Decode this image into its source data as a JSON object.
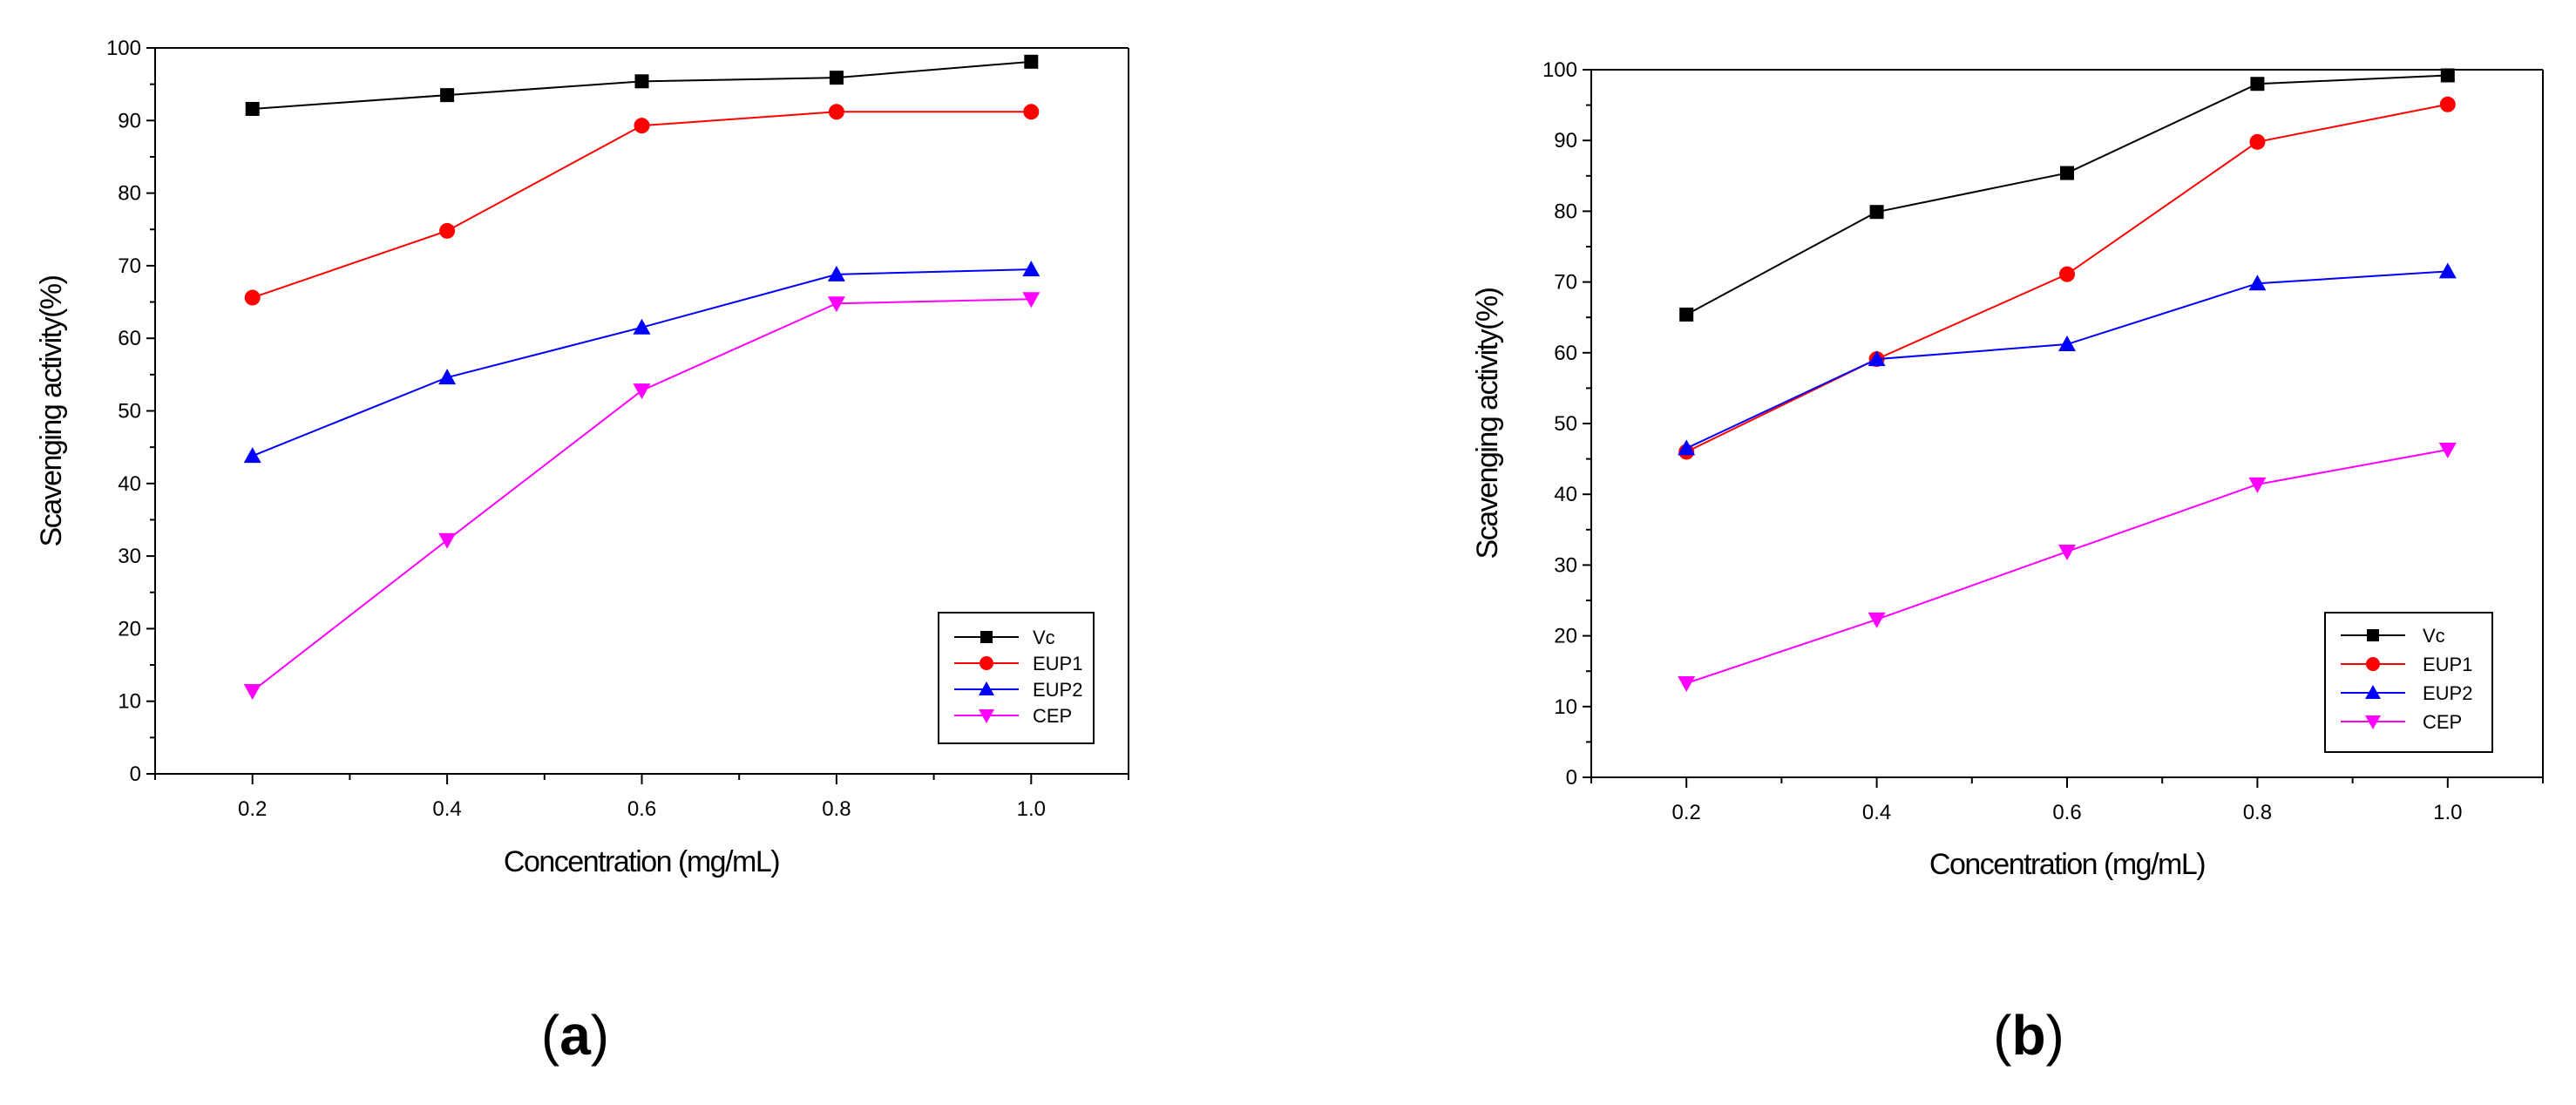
{
  "chart_data": [
    {
      "type": "line",
      "panel_label_prefix": "(",
      "panel_letter": "a",
      "panel_label_suffix": ")",
      "xlabel": "Concentration (mg/mL)",
      "ylabel": "Scavenging activity(%)",
      "xlim": [
        0.1,
        1.1
      ],
      "ylim": [
        0,
        100
      ],
      "x": [
        0.2,
        0.4,
        0.6,
        0.8,
        1.0
      ],
      "x_tick_labels": [
        "0.2",
        "0.4",
        "0.6",
        "0.8",
        "1.0"
      ],
      "y_tick_labels": [
        "0",
        "10",
        "20",
        "30",
        "40",
        "50",
        "60",
        "70",
        "80",
        "90",
        "100"
      ],
      "legend_position": "bottom-right",
      "series": [
        {
          "name": "Vc",
          "color": "#000000",
          "marker": "square",
          "values": [
            91.6,
            93.5,
            95.4,
            95.9,
            98.1
          ]
        },
        {
          "name": "EUP1",
          "color": "#ff0000",
          "marker": "circle",
          "values": [
            65.6,
            74.8,
            89.3,
            91.2,
            91.2
          ]
        },
        {
          "name": "EUP2",
          "color": "#0000ff",
          "marker": "triangle-up",
          "values": [
            43.8,
            54.6,
            61.5,
            68.8,
            69.5
          ]
        },
        {
          "name": "CEP",
          "color": "#ff00ff",
          "marker": "triangle-down",
          "values": [
            11.4,
            32.2,
            52.8,
            64.8,
            65.4
          ]
        }
      ]
    },
    {
      "type": "line",
      "panel_label_prefix": "(",
      "panel_letter": "b",
      "panel_label_suffix": ")",
      "xlabel": "Concentration (mg/mL)",
      "ylabel": "Scavenging activity(%)",
      "xlim": [
        0.1,
        1.1
      ],
      "ylim": [
        0,
        100
      ],
      "x": [
        0.2,
        0.4,
        0.6,
        0.8,
        1.0
      ],
      "x_tick_labels": [
        "0.2",
        "0.4",
        "0.6",
        "0.8",
        "1.0"
      ],
      "y_tick_labels": [
        "0",
        "10",
        "20",
        "30",
        "40",
        "50",
        "60",
        "70",
        "80",
        "90",
        "100"
      ],
      "legend_position": "bottom-right",
      "series": [
        {
          "name": "Vc",
          "color": "#000000",
          "marker": "square",
          "values": [
            65.4,
            79.9,
            85.4,
            98.0,
            99.2
          ]
        },
        {
          "name": "EUP1",
          "color": "#ff0000",
          "marker": "circle",
          "values": [
            46.0,
            59.1,
            71.1,
            89.8,
            95.1
          ]
        },
        {
          "name": "EUP2",
          "color": "#0000ff",
          "marker": "triangle-up",
          "values": [
            46.5,
            59.1,
            61.2,
            69.8,
            71.5
          ]
        },
        {
          "name": "CEP",
          "color": "#ff00ff",
          "marker": "triangle-down",
          "values": [
            13.3,
            22.3,
            31.9,
            41.4,
            46.3
          ]
        }
      ]
    }
  ]
}
